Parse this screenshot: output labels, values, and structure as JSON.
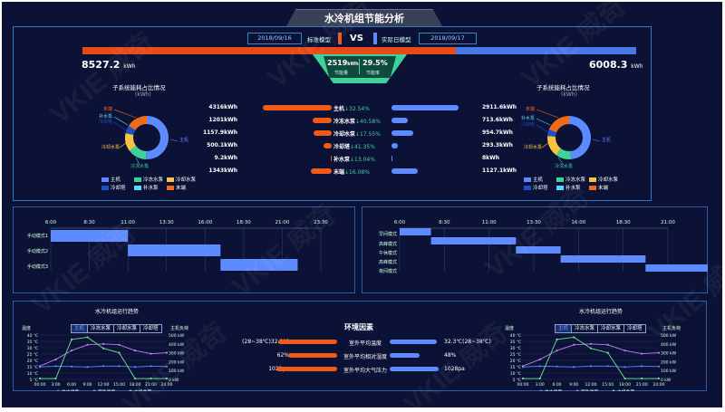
{
  "header": {
    "title": "水冷机组节能分析"
  },
  "compare": {
    "baseline_date": "2018/09/16",
    "baseline_label": "标准模型",
    "vs": "VS",
    "actual_label": "实际日模型",
    "actual_date": "2018/09/17",
    "left_total": "8527.2",
    "right_total": "6008.3",
    "unit": "kWh",
    "saved_value": "2519",
    "saved_unit": "kWh",
    "saved_label": "节能量",
    "rate_value": "29.5%",
    "rate_label": "节能率"
  },
  "left_donut": {
    "title": "子系统能耗占比情况",
    "unit": "(kWh)",
    "labels": {
      "main": "主机",
      "cool_pump": "冷冻水泵",
      "cooling_pump": "冷却水泵",
      "tower": "冷却塔",
      "make_up": "补水泵",
      "end": "末端"
    },
    "legend": [
      "主机",
      "冷冻水泵",
      "冷却水泵",
      "冷却塔",
      "补水泵",
      "末端"
    ]
  },
  "right_donut": {
    "title": "子系统能耗占比情况",
    "unit": "(kWh)",
    "labels": {
      "main": "主机",
      "cool_pump": "冷冻水泵",
      "cooling_pump": "冷却水泵",
      "tower": "冷却塔",
      "make_up": "补水泵",
      "end": "末端"
    },
    "legend": [
      "主机",
      "冷冻水泵",
      "冷却水泵",
      "冷却塔",
      "补水泵",
      "末端"
    ]
  },
  "subsystems": [
    {
      "left": "4316kWh",
      "name": "主机",
      "pct": "↓32.54%",
      "right": "2911.6kWh",
      "lw": 0.84,
      "rw": 0.82
    },
    {
      "left": "1201kWh",
      "name": "冷冻水泵",
      "pct": "↓40.58%",
      "right": "713.6kWh",
      "lw": 0.23,
      "rw": 0.2
    },
    {
      "left": "1157.9kWh",
      "name": "冷却水泵",
      "pct": "↓17.55%",
      "right": "954.7kWh",
      "lw": 0.22,
      "rw": 0.27
    },
    {
      "left": "500.1kWh",
      "name": "冷却塔",
      "pct": "↓41.35%",
      "right": "293.3kWh",
      "lw": 0.1,
      "rw": 0.08
    },
    {
      "left": "9.2kWh",
      "name": "补水泵",
      "pct": "↓13.04%",
      "right": "8kWh",
      "lw": 0.01,
      "rw": 0.01
    },
    {
      "left": "1343kWh",
      "name": "末端",
      "pct": "↓16.08%",
      "right": "1127.1kWh",
      "lw": 0.26,
      "rw": 0.32
    }
  ],
  "gantt_left": {
    "times": [
      "6:00",
      "8:30",
      "11:00",
      "13:30",
      "16:00",
      "18:30",
      "21:00",
      "23:30"
    ],
    "rows": [
      "手动模式1",
      "手动模式2",
      "手动模式3"
    ]
  },
  "gantt_right": {
    "times": [
      "6:00",
      "8:30",
      "11:00",
      "13:30",
      "16:00",
      "18:30",
      "21:00"
    ],
    "rows": [
      "早间模式",
      "高峰模式",
      "午休模式",
      "高峰模式",
      "夜间模式"
    ]
  },
  "trend_left": {
    "title": "水冷机组运行趋势",
    "tabs": [
      "主机",
      "冷冻水泵",
      "冷却水泵",
      "冷却塔"
    ],
    "y1_label": "温度",
    "y2_label": "主机负荷",
    "y1_ticks": [
      "40 ℃",
      "35 ℃",
      "30 ℃",
      "25 ℃",
      "20 ℃",
      "15 ℃",
      "10 ℃",
      "5 ℃"
    ],
    "y2_ticks": [
      "500 kW",
      "400 kW",
      "300 kW",
      "200 kW",
      "100 kW",
      "0 kW"
    ],
    "x_ticks": [
      "00:00",
      "3:00",
      "6:00",
      "9:00",
      "12:00",
      "15:00",
      "18:00",
      "21:00",
      "24:00"
    ],
    "legend": [
      "出水温度",
      "室外温度",
      "主机负荷"
    ]
  },
  "trend_right": {
    "title": "水冷机组运行趋势",
    "tabs": [
      "主机",
      "冷冻水泵",
      "冷却水泵",
      "冷却塔"
    ],
    "y1_label": "温度",
    "y2_label": "主机负荷",
    "y1_ticks": [
      "40 ℃",
      "35 ℃",
      "30 ℃",
      "25 ℃",
      "20 ℃",
      "15 ℃",
      "10 ℃",
      "5 ℃"
    ],
    "y2_ticks": [
      "500 kW",
      "400 kW",
      "300 kW",
      "200 kW",
      "100 kW",
      "0 kW"
    ],
    "x_ticks": [
      "00:00",
      "3:00",
      "6:00",
      "9:00",
      "12:00",
      "15:00",
      "18:00",
      "21:00",
      "24:00"
    ],
    "legend": [
      "出水温度",
      "室外温度",
      "主机负荷"
    ]
  },
  "env": {
    "title": "环境因素",
    "rows": [
      {
        "left": "(28~38℃)32.2℃",
        "name": "室外平均温度",
        "right": "32.3℃(28~38℃)",
        "lw": 0.95,
        "rw": 0.95
      },
      {
        "left": "62%",
        "name": "室外平均相对湿度",
        "right": "48%",
        "lw": 0.8,
        "rw": 0.6
      },
      {
        "left": "1021pa",
        "name": "室外平均大气压力",
        "right": "1028pa",
        "lw": 0.98,
        "rw": 0.99
      }
    ]
  },
  "watermark": "VKIE 威奇"
}
